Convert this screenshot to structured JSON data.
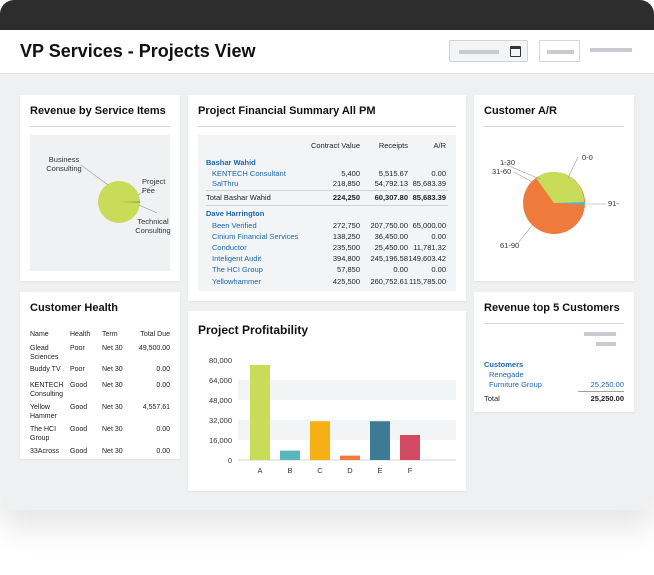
{
  "header": {
    "title": "VP Services - Projects View"
  },
  "colors": {
    "accent_blue": "#1a67b5",
    "pie_green": "#c8dc5a",
    "pie_orange": "#ee7b3c",
    "pie_teal": "#5bb5bd"
  },
  "revenue_by_service": {
    "title": "Revenue by  Service Items",
    "labels": [
      "Business Consulting",
      "Project Fee",
      "Technical Consulting"
    ]
  },
  "customer_health": {
    "title": "Customer Health",
    "columns": [
      "Name",
      "Health",
      "Term",
      "Total Due"
    ],
    "rows": [
      {
        "name": "Glead Sciences",
        "health": "Poor",
        "term": "Net 30",
        "due": "49,500.00"
      },
      {
        "name": "Buddy TV",
        "health": "Poor",
        "term": "Net 30",
        "due": "0.00"
      },
      {
        "name": "KENTECH Consulting",
        "health": "Good",
        "term": "Net 30",
        "due": "0.00"
      },
      {
        "name": "Yellow Hammer",
        "health": "Good",
        "term": "Net 30",
        "due": "4,557.61"
      },
      {
        "name": "The HCI Group",
        "health": "Good",
        "term": "Net 30",
        "due": "0.00"
      },
      {
        "name": "33Across",
        "health": "Good",
        "term": "Net 30",
        "due": "0.00"
      }
    ]
  },
  "financial_summary": {
    "title": "Project Financial Summary All PM",
    "columns": [
      "Contract Value",
      "Receipts",
      "A/R"
    ],
    "groups": [
      {
        "pm": "Bashar Wahid",
        "rows": [
          {
            "name": "KENTECH Consultant",
            "contract": "5,400",
            "receipts": "5,515.67",
            "ar": "0.00"
          },
          {
            "name": "SalThru",
            "contract": "218,850",
            "receipts": "54,792.13",
            "ar": "85,683.39"
          }
        ],
        "total": {
          "label": "Total Bashar Wahid",
          "contract": "224,250",
          "receipts": "60,307.80",
          "ar": "85,683.39"
        }
      },
      {
        "pm": "Dave Harrington",
        "rows": [
          {
            "name": "Been Verified",
            "contract": "272,750",
            "receipts": "207,750.00",
            "ar": "65,000.00"
          },
          {
            "name": "Cinium Financial Services",
            "contract": "138,250",
            "receipts": "36,450.00",
            "ar": "0.00"
          },
          {
            "name": "Conductor",
            "contract": "235,500",
            "receipts": "25,450.00",
            "ar": "11,781.32"
          },
          {
            "name": "Inteligent Audit",
            "contract": "394,800",
            "receipts": "245,196.58",
            "ar": "149,603.42"
          },
          {
            "name": "The HCI Group",
            "contract": "57,850",
            "receipts": "0.00",
            "ar": "0.00"
          },
          {
            "name": "Yellowhammer",
            "contract": "425,500",
            "receipts": "260,752.61",
            "ar": "115,785.00"
          }
        ]
      }
    ]
  },
  "chart_data": {
    "type": "bar",
    "title": "Project Profitability",
    "categories": [
      "A",
      "B",
      "C",
      "D",
      "E",
      "F"
    ],
    "values": [
      76000,
      7500,
      31000,
      3500,
      31000,
      20000
    ],
    "colors": [
      "#c8dc5a",
      "#5bb5bd",
      "#f5b014",
      "#ee7b3c",
      "#3d7a93",
      "#d24a63"
    ],
    "ylim": [
      0,
      80000
    ],
    "yticks": [
      "80,000",
      "64,000",
      "48,000",
      "32,000",
      "16,000",
      "0"
    ],
    "ytick_values": [
      80000,
      64000,
      48000,
      32000,
      16000,
      0
    ],
    "grid": true
  },
  "customer_ar": {
    "title": "Customer A/R",
    "labels": [
      "0-0",
      "1-30",
      "31-60",
      "61-90",
      "91-"
    ]
  },
  "revenue_top5": {
    "title": "Revenue top 5 Customers",
    "header": "Customers",
    "rows": [
      {
        "name": "Renegade Furniture Group",
        "value": "25,250.00"
      }
    ],
    "total": {
      "label": "Total",
      "value": "25,250.00"
    }
  }
}
